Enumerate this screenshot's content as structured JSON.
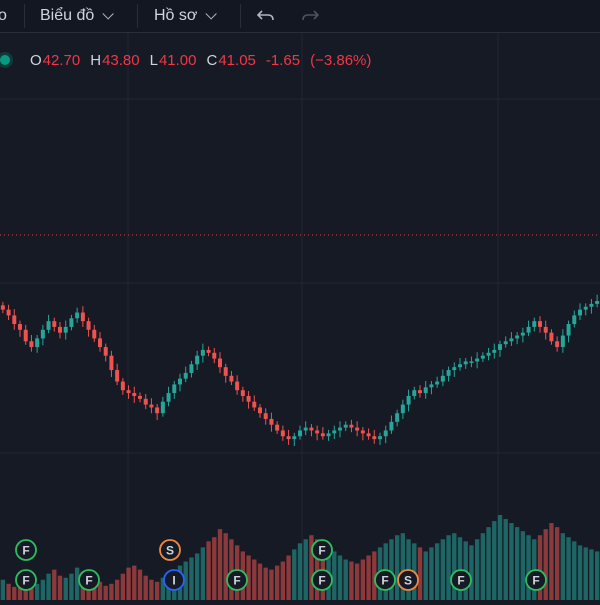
{
  "toolbar": {
    "partial_label": "o",
    "chart_menu_label": "Biểu đồ",
    "profile_menu_label": "Hồ sơ"
  },
  "legend": {
    "open_key": "O",
    "open": "42.70",
    "high_key": "H",
    "high": "43.80",
    "low_key": "L",
    "low": "41.00",
    "close_key": "C",
    "close": "41.05",
    "change": "-1.65",
    "change_pct": "(−3.86%)"
  },
  "colors": {
    "up": "#26a69a",
    "down": "#ef5350",
    "background": "#161a25",
    "price_line": "#f23645",
    "event_green": "#2ebd5f",
    "event_orange": "#f0883e",
    "event_blue": "#2962ff"
  },
  "events": [
    {
      "label": "F",
      "color": "green"
    },
    {
      "label": "F",
      "color": "green"
    },
    {
      "label": "F",
      "color": "green"
    },
    {
      "label": "S",
      "color": "orange"
    },
    {
      "label": "I",
      "color": "blue"
    },
    {
      "label": "F",
      "color": "green"
    },
    {
      "label": "F",
      "color": "green"
    },
    {
      "label": "F",
      "color": "green"
    },
    {
      "label": "F",
      "color": "green"
    },
    {
      "label": "S",
      "color": "orange"
    },
    {
      "label": "F",
      "color": "green"
    },
    {
      "label": "F",
      "color": "green"
    }
  ],
  "chart_data": {
    "type": "candlestick",
    "close_series": [
      41.9,
      41.7,
      41.4,
      41.2,
      40.8,
      40.6,
      40.9,
      41.2,
      41.5,
      41.3,
      41.1,
      41.3,
      41.6,
      41.8,
      41.5,
      41.2,
      40.9,
      40.6,
      40.3,
      39.8,
      39.4,
      39.1,
      39.0,
      38.9,
      38.8,
      38.6,
      38.5,
      38.3,
      38.7,
      39.0,
      39.3,
      39.5,
      39.7,
      40.0,
      40.3,
      40.5,
      40.4,
      40.2,
      39.9,
      39.6,
      39.4,
      39.1,
      38.9,
      38.7,
      38.5,
      38.3,
      38.1,
      37.9,
      37.7,
      37.5,
      37.4,
      37.5,
      37.7,
      37.8,
      37.7,
      37.6,
      37.5,
      37.6,
      37.7,
      37.8,
      37.9,
      37.8,
      37.7,
      37.6,
      37.5,
      37.4,
      37.5,
      37.7,
      38.0,
      38.3,
      38.6,
      38.9,
      39.1,
      39.0,
      39.2,
      39.3,
      39.4,
      39.6,
      39.8,
      39.9,
      40.0,
      40.1,
      40.1,
      40.2,
      40.3,
      40.4,
      40.5,
      40.7,
      40.8,
      40.9,
      41.0,
      41.1,
      41.3,
      41.5,
      41.3,
      41.1,
      40.8,
      40.6,
      41.0,
      41.4,
      41.7,
      41.9,
      42.0,
      42.1,
      42.2
    ],
    "volume_series": [
      20,
      16,
      13,
      12,
      15,
      18,
      16,
      20,
      26,
      30,
      24,
      22,
      26,
      32,
      28,
      30,
      22,
      18,
      14,
      16,
      20,
      26,
      32,
      34,
      30,
      24,
      20,
      18,
      22,
      26,
      30,
      34,
      38,
      42,
      46,
      52,
      58,
      62,
      70,
      66,
      60,
      54,
      48,
      44,
      40,
      36,
      32,
      30,
      34,
      38,
      44,
      50,
      56,
      60,
      64,
      60,
      56,
      52,
      48,
      44,
      40,
      38,
      36,
      40,
      44,
      48,
      52,
      56,
      60,
      64,
      66,
      60,
      56,
      52,
      48,
      52,
      56,
      60,
      64,
      66,
      62,
      58,
      54,
      60,
      66,
      72,
      78,
      84,
      80,
      76,
      72,
      68,
      64,
      60,
      64,
      70,
      76,
      72,
      66,
      62,
      58,
      54,
      52,
      50,
      48
    ]
  }
}
